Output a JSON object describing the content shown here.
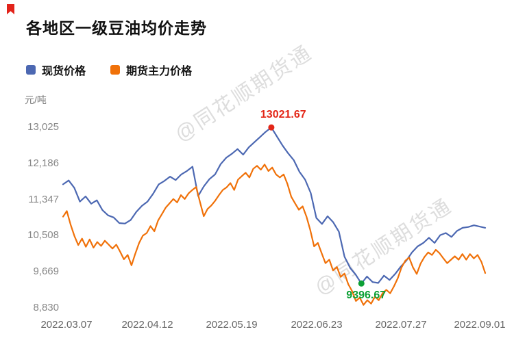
{
  "title": "各地区一级豆油均价走势",
  "unit_label": "元/吨",
  "watermark": "@同花顺期货通",
  "icons": {
    "corner_logo_icon": "red-bookmark-shape"
  },
  "legend": [
    {
      "label": "现货价格",
      "color": "#4c68b2"
    },
    {
      "label": "期货主力价格",
      "color": "#f07109"
    }
  ],
  "chart_data": {
    "type": "line",
    "title": "各地区一级豆油均价走势",
    "xlabel": "",
    "ylabel": "元/吨",
    "ylim": [
      8830,
      13025
    ],
    "grid": false,
    "legend_position": "top-left",
    "yticks": [
      "13,025",
      "12,186",
      "11,347",
      "10,508",
      "9,669",
      "8,830"
    ],
    "ytick_values": [
      13025,
      12186,
      11347,
      10508,
      9669,
      8830
    ],
    "xticks": [
      "2022.03.07",
      "2022.04.12",
      "2022.05.19",
      "2022.06.23",
      "2022.07.27",
      "2022.09.01"
    ],
    "series": [
      {
        "name": "现货价格",
        "color": "#4c68b2",
        "values": [
          11700,
          11790,
          11620,
          11300,
          11420,
          11250,
          11330,
          11100,
          10980,
          10930,
          10800,
          10790,
          10870,
          11060,
          11200,
          11300,
          11480,
          11700,
          11780,
          11880,
          11800,
          11930,
          12010,
          12110,
          11430,
          11650,
          11820,
          11930,
          12170,
          12320,
          12410,
          12520,
          12390,
          12560,
          12680,
          12800,
          12920,
          13021.67,
          12810,
          12600,
          12420,
          12260,
          11990,
          11810,
          11500,
          10920,
          10780,
          10960,
          10820,
          10600,
          10020,
          9760,
          9600,
          9396.67,
          9560,
          9430,
          9410,
          9580,
          9480,
          9620,
          9790,
          9930,
          10120,
          10260,
          10340,
          10460,
          10340,
          10520,
          10570,
          10480,
          10620,
          10690,
          10710,
          10750,
          10720,
          10690
        ]
      },
      {
        "name": "期货主力价格",
        "color": "#f07109",
        "values": [
          10950,
          11080,
          10760,
          10500,
          10290,
          10440,
          10250,
          10420,
          10230,
          10360,
          10270,
          10390,
          10300,
          10210,
          10300,
          10140,
          9960,
          10060,
          9820,
          10090,
          10340,
          10510,
          10570,
          10730,
          10610,
          10860,
          11010,
          11160,
          11260,
          11360,
          11280,
          11450,
          11360,
          11490,
          11570,
          11640,
          11290,
          10960,
          11130,
          11210,
          11320,
          11450,
          11570,
          11630,
          11730,
          11570,
          11810,
          11890,
          11970,
          11860,
          12060,
          12130,
          12040,
          12160,
          12010,
          12090,
          11930,
          11860,
          11930,
          11710,
          11410,
          11260,
          11110,
          11190,
          10950,
          10640,
          10260,
          10340,
          10100,
          9870,
          9950,
          9700,
          9780,
          9550,
          9630,
          9380,
          9220,
          8990,
          9070,
          8900,
          9010,
          8930,
          9090,
          9010,
          9170,
          9250,
          9170,
          9330,
          9520,
          9770,
          9930,
          10000,
          9770,
          9620,
          9860,
          10010,
          10120,
          10060,
          10180,
          10100,
          9980,
          9870,
          9950,
          10030,
          9950,
          10080,
          9950,
          10080,
          9980,
          10060,
          9900,
          9640
        ]
      }
    ],
    "annotations": [
      {
        "type": "max",
        "series": "现货价格",
        "label": "13021.67",
        "value": 13021.67,
        "color": "#e32617"
      },
      {
        "type": "min",
        "series": "现货价格",
        "label": "9396.67",
        "value": 9396.67,
        "color": "#0ca035"
      }
    ]
  }
}
